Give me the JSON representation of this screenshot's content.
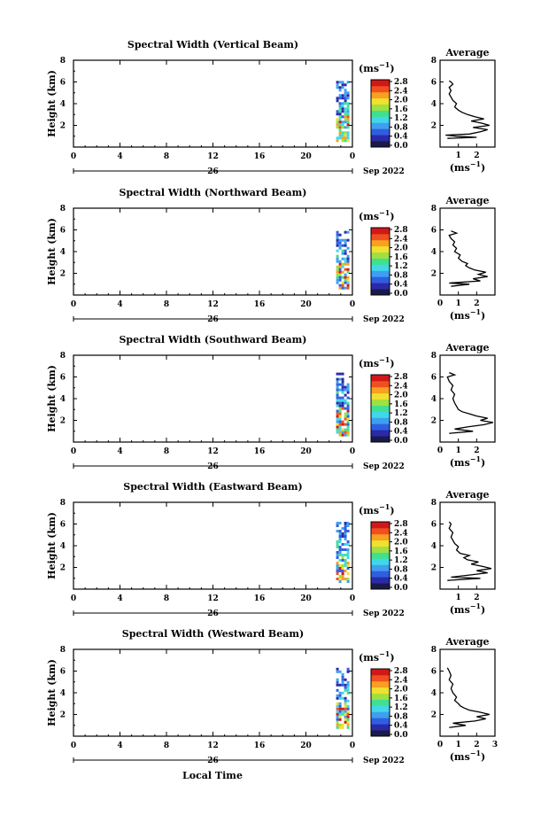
{
  "figure": {
    "xlabel": "Local Time",
    "x_ticks": [
      "0",
      "4",
      "8",
      "12",
      "16",
      "20",
      "0"
    ],
    "day_label": "26",
    "month_label": "Sep  2022",
    "colorbar_unit": "(ms",
    "colorbar_unit_exp": "−1",
    "colorbar_unit_close": ")",
    "colorbar_ticks": [
      "0.0",
      "0.4",
      "0.8",
      "1.2",
      "1.6",
      "2.0",
      "2.4",
      "2.8"
    ],
    "colorbar_range": [
      0,
      2.8
    ],
    "colorbar_colors": [
      "#1a1a4a",
      "#2a2aa8",
      "#2f5fe0",
      "#3f9ff0",
      "#40d8e8",
      "#40e090",
      "#a0e040",
      "#f0e030",
      "#f8a020",
      "#f05020",
      "#d01818"
    ],
    "avg_title": "Average",
    "avg_xlabel": "(ms",
    "avg_xlabel_exp": "−1",
    "avg_xlabel_close": ")",
    "avg_y_ticks": [
      "2",
      "4",
      "6",
      "8"
    ],
    "ylabel": "Height (km)",
    "main_y_ticks": [
      "2",
      "4",
      "6",
      "8"
    ]
  },
  "chart_data": [
    {
      "type": "heatmap",
      "title": "Spectral Width (Vertical Beam)",
      "ylabel": "Height (km)",
      "xlim": [
        0,
        24
      ],
      "ylim": [
        0,
        8
      ],
      "data_time_window": [
        22.6,
        23.6
      ],
      "data_height_range": [
        0.7,
        6.1
      ],
      "avg_x_ticks": [
        "1",
        "2"
      ],
      "avg_xlim": [
        0,
        3
      ],
      "average_profile": [
        [
          0.8,
          0.4
        ],
        [
          0.9,
          2.0
        ],
        [
          1.0,
          0.9
        ],
        [
          1.1,
          0.3
        ],
        [
          1.2,
          1.6
        ],
        [
          1.4,
          2.2
        ],
        [
          1.6,
          2.6
        ],
        [
          1.8,
          1.8
        ],
        [
          2.0,
          2.7
        ],
        [
          2.2,
          2.3
        ],
        [
          2.4,
          1.7
        ],
        [
          2.6,
          2.4
        ],
        [
          2.8,
          1.9
        ],
        [
          3.0,
          1.5
        ],
        [
          3.2,
          1.2
        ],
        [
          3.4,
          1.0
        ],
        [
          3.7,
          0.8
        ],
        [
          4.0,
          0.9
        ],
        [
          4.3,
          0.7
        ],
        [
          4.6,
          0.6
        ],
        [
          4.9,
          0.5
        ],
        [
          5.2,
          0.6
        ],
        [
          5.5,
          0.5
        ],
        [
          5.8,
          0.7
        ],
        [
          6.0,
          0.6
        ],
        [
          6.1,
          0.5
        ]
      ]
    },
    {
      "type": "heatmap",
      "title": "Spectral Width (Northward Beam)",
      "ylabel": "Height (km)",
      "xlim": [
        0,
        24
      ],
      "ylim": [
        0,
        8
      ],
      "data_time_window": [
        22.6,
        23.6
      ],
      "data_height_range": [
        0.7,
        5.9
      ],
      "avg_x_ticks": [
        "0",
        "1",
        "2"
      ],
      "avg_xlim": [
        0,
        3
      ],
      "average_profile": [
        [
          0.8,
          0.6
        ],
        [
          1.0,
          1.6
        ],
        [
          1.1,
          0.5
        ],
        [
          1.3,
          2.2
        ],
        [
          1.5,
          1.8
        ],
        [
          1.7,
          2.6
        ],
        [
          1.9,
          2.1
        ],
        [
          2.1,
          2.5
        ],
        [
          2.3,
          1.9
        ],
        [
          2.5,
          1.6
        ],
        [
          2.7,
          1.4
        ],
        [
          2.9,
          1.5
        ],
        [
          3.1,
          1.2
        ],
        [
          3.4,
          1.0
        ],
        [
          3.7,
          1.1
        ],
        [
          4.0,
          0.8
        ],
        [
          4.3,
          0.9
        ],
        [
          4.6,
          0.7
        ],
        [
          4.9,
          0.8
        ],
        [
          5.2,
          0.6
        ],
        [
          5.5,
          0.5
        ],
        [
          5.7,
          0.9
        ],
        [
          5.9,
          0.6
        ]
      ]
    },
    {
      "type": "heatmap",
      "title": "Spectral Width (Southward Beam)",
      "ylabel": "Height (km)",
      "xlim": [
        0,
        24
      ],
      "ylim": [
        0,
        8
      ],
      "data_time_window": [
        22.6,
        23.6
      ],
      "data_height_range": [
        0.7,
        6.4
      ],
      "avg_x_ticks": [
        "0",
        "1",
        "2"
      ],
      "avg_xlim": [
        0,
        3
      ],
      "average_profile": [
        [
          0.8,
          0.5
        ],
        [
          1.0,
          1.8
        ],
        [
          1.2,
          0.8
        ],
        [
          1.4,
          1.5
        ],
        [
          1.6,
          2.4
        ],
        [
          1.8,
          2.9
        ],
        [
          2.0,
          2.2
        ],
        [
          2.2,
          2.6
        ],
        [
          2.4,
          2.0
        ],
        [
          2.6,
          1.6
        ],
        [
          2.8,
          1.2
        ],
        [
          3.0,
          1.0
        ],
        [
          3.3,
          0.9
        ],
        [
          3.6,
          0.8
        ],
        [
          4.0,
          0.7
        ],
        [
          4.4,
          0.8
        ],
        [
          4.8,
          0.6
        ],
        [
          5.2,
          0.7
        ],
        [
          5.6,
          0.5
        ],
        [
          6.0,
          0.4
        ],
        [
          6.2,
          0.8
        ],
        [
          6.4,
          0.5
        ]
      ]
    },
    {
      "type": "heatmap",
      "title": "Spectral Width (Eastward Beam)",
      "ylabel": "Height (km)",
      "xlim": [
        0,
        24
      ],
      "ylim": [
        0,
        8
      ],
      "data_time_window": [
        22.6,
        23.6
      ],
      "data_height_range": [
        0.7,
        6.2
      ],
      "avg_x_ticks": [
        "1",
        "2"
      ],
      "avg_xlim": [
        0,
        3
      ],
      "average_profile": [
        [
          0.8,
          0.4
        ],
        [
          1.0,
          2.2
        ],
        [
          1.1,
          0.6
        ],
        [
          1.3,
          1.6
        ],
        [
          1.5,
          2.6
        ],
        [
          1.7,
          2.0
        ],
        [
          1.9,
          2.8
        ],
        [
          2.1,
          2.3
        ],
        [
          2.3,
          1.7
        ],
        [
          2.5,
          2.1
        ],
        [
          2.7,
          1.5
        ],
        [
          2.9,
          1.3
        ],
        [
          3.1,
          1.6
        ],
        [
          3.3,
          1.1
        ],
        [
          3.6,
          0.9
        ],
        [
          3.9,
          1.0
        ],
        [
          4.2,
          0.8
        ],
        [
          4.5,
          0.7
        ],
        [
          4.8,
          0.6
        ],
        [
          5.2,
          0.7
        ],
        [
          5.6,
          0.5
        ],
        [
          6.0,
          0.6
        ],
        [
          6.2,
          0.5
        ]
      ]
    },
    {
      "type": "heatmap",
      "title": "Spectral Width (Westward Beam)",
      "ylabel": "Height (km)",
      "xlim": [
        0,
        24
      ],
      "ylim": [
        0,
        8
      ],
      "data_time_window": [
        22.6,
        23.6
      ],
      "data_height_range": [
        0.7,
        6.3
      ],
      "avg_x_ticks": [
        "0",
        "1",
        "2",
        "3"
      ],
      "avg_xlim": [
        0,
        3
      ],
      "average_profile": [
        [
          0.8,
          0.5
        ],
        [
          1.0,
          1.4
        ],
        [
          1.2,
          0.7
        ],
        [
          1.4,
          1.9
        ],
        [
          1.6,
          2.5
        ],
        [
          1.8,
          2.0
        ],
        [
          2.0,
          2.7
        ],
        [
          2.2,
          2.2
        ],
        [
          2.4,
          1.6
        ],
        [
          2.6,
          1.3
        ],
        [
          2.8,
          1.1
        ],
        [
          3.0,
          1.0
        ],
        [
          3.3,
          0.8
        ],
        [
          3.6,
          0.9
        ],
        [
          4.0,
          0.7
        ],
        [
          4.4,
          0.6
        ],
        [
          4.8,
          0.7
        ],
        [
          5.2,
          0.5
        ],
        [
          5.6,
          0.6
        ],
        [
          6.0,
          0.5
        ],
        [
          6.3,
          0.4
        ]
      ]
    }
  ]
}
